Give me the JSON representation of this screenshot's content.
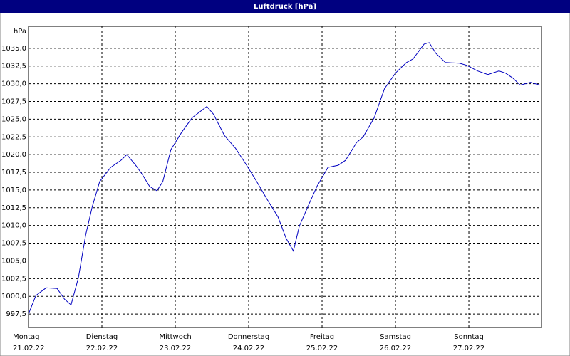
{
  "chart_data": {
    "type": "line",
    "title": "Luftdruck [hPa]",
    "y_label": "hPa",
    "series": [
      {
        "name": "Luftdruck",
        "color": "#0000c0",
        "x": [
          0,
          0.1,
          0.24,
          0.39,
          0.49,
          0.58,
          0.68,
          0.78,
          0.87,
          0.97,
          1.12,
          1.26,
          1.34,
          1.46,
          1.55,
          1.65,
          1.75,
          1.83,
          1.94,
          2.09,
          2.23,
          2.43,
          2.52,
          2.67,
          2.82,
          2.96,
          3.11,
          3.25,
          3.4,
          3.51,
          3.61,
          3.69,
          3.83,
          3.93,
          4.08,
          4.22,
          4.32,
          4.47,
          4.56,
          4.71,
          4.85,
          5.0,
          5.15,
          5.24,
          5.39,
          5.46,
          5.55,
          5.68,
          5.87,
          5.97,
          6.12,
          6.26,
          6.41,
          6.5,
          6.6,
          6.7,
          6.84,
          6.97
        ],
        "values": [
          997.5,
          1000.1,
          1001.2,
          1001.1,
          999.6,
          998.8,
          1002.6,
          1008.7,
          1012.7,
          1016.2,
          1018.2,
          1019.2,
          1020.0,
          1018.5,
          1017.2,
          1015.5,
          1014.9,
          1016.2,
          1020.7,
          1023.2,
          1025.2,
          1026.8,
          1025.7,
          1022.7,
          1020.9,
          1018.7,
          1016.2,
          1013.7,
          1011.2,
          1008.2,
          1006.4,
          1009.9,
          1013.2,
          1015.5,
          1018.2,
          1018.5,
          1019.2,
          1021.7,
          1022.5,
          1025.2,
          1029.3,
          1031.5,
          1033.0,
          1033.5,
          1035.6,
          1035.8,
          1034.3,
          1033.0,
          1032.9,
          1032.6,
          1031.8,
          1031.3,
          1031.8,
          1031.5,
          1030.8,
          1029.8,
          1030.2,
          1029.8
        ]
      }
    ],
    "xlim": [
      0,
      6.99
    ],
    "xticks": [
      {
        "value": 0,
        "label": "Montag",
        "date": "21.02.22"
      },
      {
        "value": 1,
        "label": "Dienstag",
        "date": "22.02.22"
      },
      {
        "value": 2,
        "label": "Mittwoch",
        "date": "23.02.22"
      },
      {
        "value": 3,
        "label": "Donnerstag",
        "date": "24.02.22"
      },
      {
        "value": 4,
        "label": "Freitag",
        "date": "25.02.22"
      },
      {
        "value": 5,
        "label": "Samstag",
        "date": "26.02.22"
      },
      {
        "value": 6,
        "label": "Sonntag",
        "date": "27.02.22"
      }
    ],
    "ylim": [
      995.6,
      1038.1
    ],
    "yticks": [
      {
        "value": 997.5,
        "label": "997,5"
      },
      {
        "value": 1000,
        "label": "1000,0"
      },
      {
        "value": 1002.5,
        "label": "1002,5"
      },
      {
        "value": 1005,
        "label": "1005,0"
      },
      {
        "value": 1007.5,
        "label": "1007,5"
      },
      {
        "value": 1010,
        "label": "1010,0"
      },
      {
        "value": 1012.5,
        "label": "1012,5"
      },
      {
        "value": 1015,
        "label": "1015,0"
      },
      {
        "value": 1017.5,
        "label": "1017,5"
      },
      {
        "value": 1020,
        "label": "1020,0"
      },
      {
        "value": 1022.5,
        "label": "1022,5"
      },
      {
        "value": 1025,
        "label": "1025,0"
      },
      {
        "value": 1027.5,
        "label": "1027,5"
      },
      {
        "value": 1030,
        "label": "1030,0"
      },
      {
        "value": 1032.5,
        "label": "1032,5"
      },
      {
        "value": 1035,
        "label": "1035,0"
      }
    ],
    "grid": true
  }
}
